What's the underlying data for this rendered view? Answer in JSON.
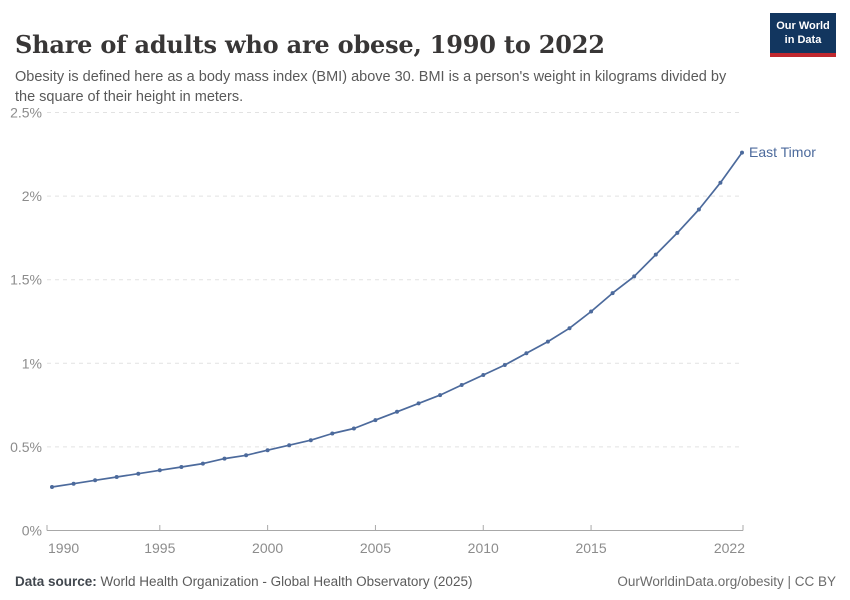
{
  "header": {
    "title": "Share of adults who are obese, 1990 to 2022",
    "subtitle": "Obesity is defined here as a body mass index (BMI) above 30. BMI is a person's weight in kilograms divided by the square of their height in meters.",
    "logo": {
      "line1": "Our World",
      "line2": "in Data"
    }
  },
  "chart_data": {
    "type": "line",
    "title": "Share of adults who are obese, 1990 to 2022",
    "series": [
      {
        "name": "East Timor",
        "color": "#4c6a9c",
        "x": [
          1990,
          1991,
          1992,
          1993,
          1994,
          1995,
          1996,
          1997,
          1998,
          1999,
          2000,
          2001,
          2002,
          2003,
          2004,
          2005,
          2006,
          2007,
          2008,
          2009,
          2010,
          2011,
          2012,
          2013,
          2014,
          2015,
          2016,
          2017,
          2018,
          2019,
          2020,
          2021,
          2022
        ],
        "values": [
          0.26,
          0.28,
          0.3,
          0.32,
          0.34,
          0.36,
          0.38,
          0.4,
          0.43,
          0.45,
          0.48,
          0.51,
          0.54,
          0.58,
          0.61,
          0.66,
          0.71,
          0.76,
          0.81,
          0.87,
          0.93,
          0.99,
          1.06,
          1.13,
          1.21,
          1.31,
          1.42,
          1.52,
          1.65,
          1.78,
          1.92,
          2.08,
          2.26
        ]
      }
    ],
    "xlim": [
      1990,
      2022
    ],
    "ylim": [
      0,
      2.5
    ],
    "x_tick_values": [
      1990,
      1995,
      2000,
      2005,
      2010,
      2015,
      2022
    ],
    "x_tick_labels": [
      "1990",
      "1995",
      "2000",
      "2005",
      "2010",
      "2015",
      "2022"
    ],
    "y_tick_values": [
      0,
      0.5,
      1,
      1.5,
      2,
      2.5
    ],
    "y_tick_labels": [
      "0%",
      "0.5%",
      "1%",
      "1.5%",
      "2%",
      "2.5%"
    ],
    "grid": "horizontal dashed",
    "legend_position": "end-of-line label",
    "end_label": "East Timor",
    "colors": {
      "line": "#4c6a9c",
      "grid": "#e2e2e2",
      "axis": "#a8a8a8",
      "tick_label": "#8c8c8c"
    }
  },
  "footer": {
    "datasource_label": "Data source:",
    "datasource_text": " World Health Organization - Global Health Observatory (2025)",
    "credit": "OurWorldinData.org/obesity | CC BY"
  }
}
